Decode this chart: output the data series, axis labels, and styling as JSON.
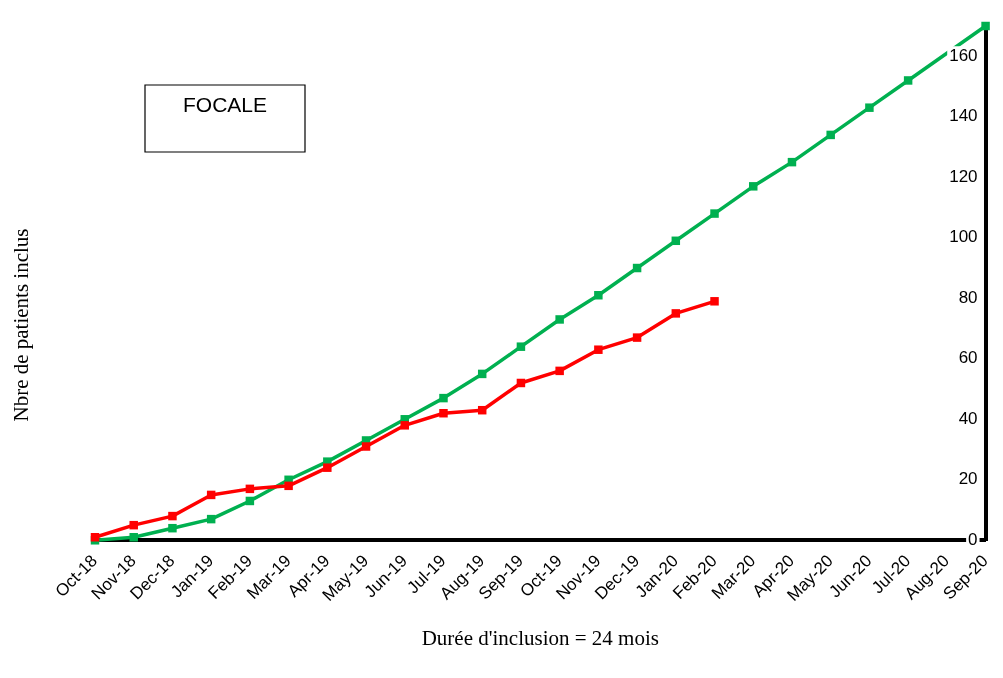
{
  "chart_data": {
    "type": "line",
    "xlabel": "Durée d'inclusion = 24 mois",
    "ylabel": "Nbre de patients inclus",
    "annotations": [
      "FOCALE"
    ],
    "categories": [
      "Oct-18",
      "Nov-18",
      "Dec-18",
      "Jan-19",
      "Feb-19",
      "Mar-19",
      "Apr-19",
      "May-19",
      "Jun-19",
      "Jul-19",
      "Aug-19",
      "Sep-19",
      "Oct-19",
      "Nov-19",
      "Dec-19",
      "Jan-20",
      "Feb-20",
      "Mar-20",
      "Apr-20",
      "May-20",
      "Jun-20",
      "Jul-20",
      "Aug-20",
      "Sep-20"
    ],
    "series": [
      {
        "color": "#00b050",
        "values": [
          0,
          1,
          4,
          7,
          13,
          20,
          26,
          33,
          40,
          47,
          55,
          64,
          73,
          81,
          90,
          99,
          108,
          117,
          125,
          134,
          143,
          152,
          null,
          170
        ]
      },
      {
        "color": "#ff0000",
        "values": [
          1,
          5,
          8,
          15,
          17,
          18,
          24,
          31,
          38,
          42,
          43,
          52,
          56,
          63,
          67,
          75,
          79,
          null,
          null,
          null,
          null,
          null,
          null,
          null
        ]
      }
    ],
    "ylim": [
      0,
      170
    ],
    "yticks": [
      0,
      20,
      40,
      60,
      80,
      100,
      120,
      140,
      160
    ],
    "grid": false,
    "legend": false,
    "marker": "square",
    "line_style": "solid"
  }
}
